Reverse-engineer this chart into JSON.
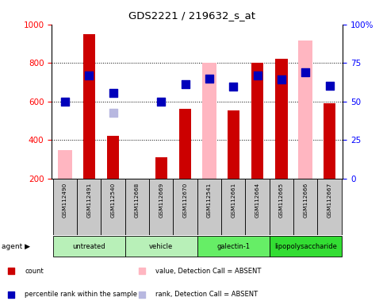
{
  "title": "GDS2221 / 219632_s_at",
  "samples": [
    "GSM112490",
    "GSM112491",
    "GSM112540",
    "GSM112668",
    "GSM112669",
    "GSM112670",
    "GSM112541",
    "GSM112661",
    "GSM112664",
    "GSM112665",
    "GSM112666",
    "GSM112667"
  ],
  "red_bars": [
    null,
    950,
    420,
    null,
    310,
    560,
    null,
    555,
    800,
    820,
    null,
    590
  ],
  "pink_bars": [
    345,
    null,
    null,
    null,
    null,
    null,
    800,
    null,
    null,
    null,
    915,
    null
  ],
  "blue_dots": [
    600,
    735,
    645,
    null,
    600,
    690,
    720,
    675,
    735,
    715,
    750,
    680
  ],
  "lavender_dots": [
    null,
    null,
    540,
    null,
    null,
    null,
    null,
    null,
    null,
    null,
    null,
    null
  ],
  "group_colors": [
    "#b8f0b8",
    "#b8f0b8",
    "#66ee66",
    "#33dd33"
  ],
  "group_ranges": [
    [
      0,
      3
    ],
    [
      3,
      6
    ],
    [
      6,
      9
    ],
    [
      9,
      12
    ]
  ],
  "group_labels": [
    "untreated",
    "vehicle",
    "galectin-1",
    "lipopolysaccharide"
  ],
  "ylim_left": [
    200,
    1000
  ],
  "ylim_right": [
    0,
    100
  ],
  "left_ticks": [
    200,
    400,
    600,
    800,
    1000
  ],
  "right_ticks": [
    0,
    25,
    50,
    75,
    100
  ],
  "right_tick_labels": [
    "0",
    "25",
    "50",
    "75",
    "100%"
  ],
  "bar_width": 0.5,
  "pink_bar_width": 0.6,
  "dot_size": 55,
  "red_color": "#cc0000",
  "pink_color": "#ffb6c1",
  "blue_color": "#0000bb",
  "lavender_color": "#b8b8e0",
  "bg_sample": "#c8c8c8",
  "legend_items": [
    {
      "color": "#cc0000",
      "label": "count"
    },
    {
      "color": "#0000bb",
      "label": "percentile rank within the sample"
    },
    {
      "color": "#ffb6c1",
      "label": "value, Detection Call = ABSENT"
    },
    {
      "color": "#b8b8e0",
      "label": "rank, Detection Call = ABSENT"
    }
  ]
}
